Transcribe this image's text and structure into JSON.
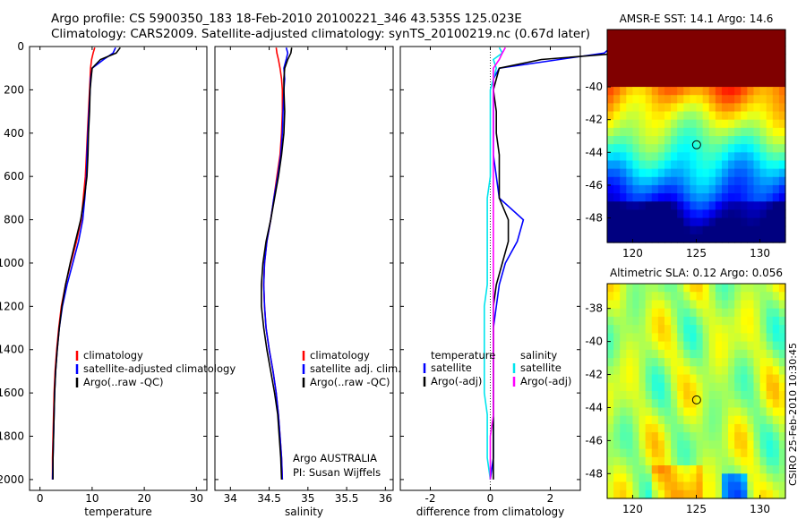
{
  "header": {
    "line1": "Argo profile: CS 5900350_183 18-Feb-2010 20100221_346 43.535S 125.023E",
    "line2": "Climatology: CARS2009. Satellite-adjusted climatology: synTS_20100219.nc (0.67d later)"
  },
  "signature": "CSIRO 25-Feb-2010 10:30:45",
  "colors": {
    "climatology": "#ff0000",
    "satellite": "#0000ff",
    "argo": "#000000",
    "satellite_salinity": "#00e5ee",
    "argo_salinity": "#ff00ff"
  },
  "chart_data": [
    {
      "type": "line",
      "xlabel": "temperature",
      "xlim": [
        -2,
        32
      ],
      "xticks": [
        0,
        10,
        20,
        30
      ],
      "ylim": [
        2050,
        0
      ],
      "yticks": [
        0,
        200,
        400,
        600,
        800,
        1000,
        1200,
        1400,
        1600,
        1800,
        2000
      ],
      "y": [
        5,
        30,
        60,
        100,
        150,
        200,
        300,
        400,
        500,
        600,
        700,
        800,
        900,
        1000,
        1100,
        1200,
        1300,
        1400,
        1500,
        1600,
        1700,
        1800,
        1900,
        2000
      ],
      "series": [
        {
          "name": "climatology",
          "values": [
            10.5,
            10.2,
            9.9,
            9.7,
            9.6,
            9.5,
            9.3,
            9.1,
            8.9,
            8.7,
            8.3,
            7.9,
            7.0,
            5.9,
            4.9,
            4.1,
            3.6,
            3.2,
            2.9,
            2.7,
            2.6,
            2.5,
            2.4,
            2.4
          ]
        },
        {
          "name": "satellite-adjusted climatology",
          "values": [
            14.5,
            14.0,
            12.2,
            10.0,
            9.7,
            9.6,
            9.4,
            9.2,
            9.0,
            8.9,
            8.6,
            8.2,
            7.4,
            6.3,
            5.2,
            4.3,
            3.7,
            3.3,
            3.0,
            2.8,
            2.7,
            2.6,
            2.5,
            2.4
          ]
        },
        {
          "name": "Argo(..raw -QC)",
          "values": [
            15.4,
            14.6,
            11.6,
            10.0,
            9.8,
            9.6,
            9.5,
            9.3,
            9.2,
            9.0,
            8.5,
            7.8,
            6.8,
            5.8,
            4.9,
            4.2,
            3.7,
            3.3,
            3.0,
            2.8,
            2.7,
            2.6,
            2.5,
            2.5
          ]
        }
      ],
      "legend": {
        "position": "bottom-right",
        "entries": [
          "climatology",
          "satellite-adjusted climatology",
          "Argo(..raw -QC)"
        ]
      }
    },
    {
      "type": "line",
      "xlabel": "salinity",
      "xlim": [
        33.8,
        36.1
      ],
      "xticks": [
        34,
        34.5,
        35,
        35.5,
        36
      ],
      "ylim": [
        2050,
        0
      ],
      "y": [
        5,
        30,
        60,
        100,
        150,
        200,
        300,
        400,
        500,
        600,
        700,
        800,
        900,
        1000,
        1100,
        1200,
        1300,
        1400,
        1500,
        1600,
        1700,
        1800,
        1900,
        2000
      ],
      "series": [
        {
          "name": "climatology",
          "values": [
            34.59,
            34.6,
            34.62,
            34.64,
            34.66,
            34.67,
            34.67,
            34.66,
            34.64,
            34.6,
            34.56,
            34.52,
            34.47,
            34.44,
            34.43,
            34.44,
            34.46,
            34.5,
            34.55,
            34.59,
            34.62,
            34.64,
            34.66,
            34.67
          ]
        },
        {
          "name": "satellite adj. clim.",
          "values": [
            34.72,
            34.74,
            34.72,
            34.69,
            34.7,
            34.69,
            34.68,
            34.67,
            34.65,
            34.61,
            34.56,
            34.52,
            34.47,
            34.44,
            34.43,
            34.44,
            34.46,
            34.5,
            34.55,
            34.59,
            34.62,
            34.64,
            34.66,
            34.67
          ]
        },
        {
          "name": "Argo(..raw -QC)",
          "values": [
            34.79,
            34.78,
            34.74,
            34.7,
            34.69,
            34.69,
            34.7,
            34.69,
            34.66,
            34.62,
            34.57,
            34.52,
            34.46,
            34.42,
            34.4,
            34.4,
            34.43,
            34.47,
            34.52,
            34.57,
            34.61,
            34.63,
            34.65,
            34.66
          ]
        }
      ],
      "legend": {
        "position": "bottom-right",
        "entries": [
          "climatology",
          "satellite adj. clim.",
          "Argo(..raw -QC)"
        ]
      },
      "annotation": [
        "Argo AUSTRALIA",
        "PI: Susan Wijffels"
      ]
    },
    {
      "type": "line",
      "xlabel": "difference from climatology",
      "xlim": [
        -3,
        3
      ],
      "xticks": [
        -2,
        0,
        2
      ],
      "ylim": [
        2050,
        0
      ],
      "y": [
        5,
        30,
        60,
        100,
        150,
        200,
        300,
        400,
        500,
        600,
        700,
        800,
        900,
        1000,
        1100,
        1200,
        1300,
        1400,
        1500,
        1600,
        1700,
        1800,
        1900,
        2000
      ],
      "series": [
        {
          "name": "temperature satellite",
          "values": [
            4.0,
            3.8,
            2.3,
            0.3,
            0.1,
            0.1,
            0.1,
            0.1,
            0.1,
            0.2,
            0.3,
            1.1,
            0.9,
            0.5,
            0.3,
            0.2,
            0.1,
            0.1,
            0.1,
            0.1,
            0.1,
            0.1,
            0.1,
            0.0
          ]
        },
        {
          "name": "temperature Argo(-adj)",
          "values": [
            4.9,
            4.4,
            1.7,
            0.3,
            0.2,
            0.1,
            0.2,
            0.2,
            0.3,
            0.3,
            0.3,
            0.6,
            0.6,
            0.4,
            0.2,
            0.1,
            0.1,
            0.1,
            0.1,
            0.1,
            0.1,
            0.1,
            0.1,
            0.1
          ]
        },
        {
          "name": "salinity satellite",
          "values": [
            0.3,
            0.4,
            0.1,
            0.2,
            0.1,
            0.0,
            0.0,
            0.0,
            0.0,
            0.0,
            -0.1,
            -0.1,
            -0.1,
            -0.1,
            -0.1,
            -0.2,
            -0.2,
            -0.2,
            -0.2,
            -0.2,
            -0.1,
            -0.1,
            -0.1,
            0.0
          ]
        },
        {
          "name": "salinity Argo(-adj)",
          "values": [
            0.5,
            0.4,
            0.3,
            0.1,
            0.1,
            0.1,
            0.1,
            0.1,
            0.1,
            0.1,
            0.1,
            0.1,
            0.1,
            0.1,
            0.1,
            0.1,
            0.1,
            0.1,
            0.1,
            0.1,
            0.1,
            0.0,
            0.0,
            0.0
          ]
        }
      ],
      "legend": {
        "position": "bottom",
        "headers": [
          "temperature",
          "salinity"
        ],
        "entries": [
          "satellite",
          "Argo(-adj)",
          "satellite",
          "Argo(-adj)"
        ]
      }
    },
    {
      "type": "heatmap",
      "title": "AMSR-E SST: 14.1 Argo: 14.6",
      "xlim": [
        118,
        132
      ],
      "xticks": [
        120,
        125,
        130
      ],
      "ylim": [
        -49.5,
        -36.5
      ],
      "yticks": [
        -40,
        -42,
        -44,
        -46,
        -48
      ],
      "marker": {
        "x": 125.023,
        "y": -43.535
      }
    },
    {
      "type": "heatmap",
      "title": "Altimetric SLA: 0.12 Argo: 0.056",
      "xlim": [
        118,
        132
      ],
      "xticks": [
        120,
        125,
        130
      ],
      "ylim": [
        -49.5,
        -36.5
      ],
      "yticks": [
        -38,
        -40,
        -42,
        -44,
        -46,
        -48
      ],
      "marker": {
        "x": 125.023,
        "y": -43.535
      }
    }
  ]
}
